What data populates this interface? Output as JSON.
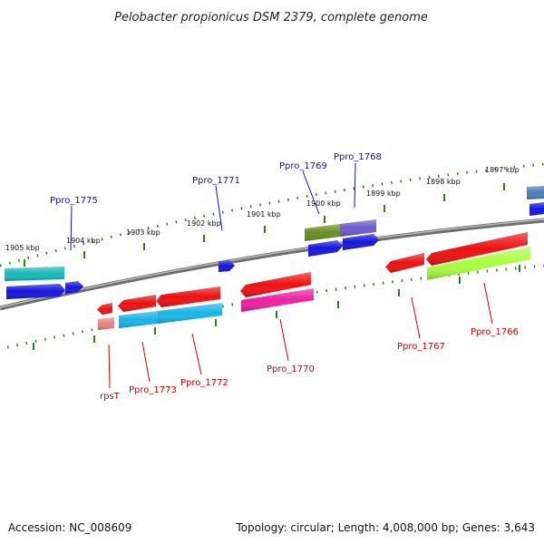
{
  "title": "Pelobacter propionicus DSM 2379, complete genome",
  "footer": {
    "accession": "Accession: NC_008609",
    "topology": "Topology: circular; Length: 4,008,000 bp; Genes: 3,643"
  },
  "colors": {
    "backbone": "#8a8a8a",
    "tick": "#2d7d1a",
    "label_upper": "#1010b0",
    "label_lower": "#cc0000"
  },
  "kbp_labels": [
    {
      "id": "1905",
      "text": "1905 kbp"
    },
    {
      "id": "1904",
      "text": "1904 kbp"
    },
    {
      "id": "1903",
      "text": "1903 kbp"
    },
    {
      "id": "1902",
      "text": "1902 kbp"
    },
    {
      "id": "1901",
      "text": "1901 kbp"
    },
    {
      "id": "1900",
      "text": "1900 kbp"
    },
    {
      "id": "1899",
      "text": "1899 kbp"
    },
    {
      "id": "1898",
      "text": "1898 kbp"
    },
    {
      "id": "1897",
      "text": "1897 kbp"
    }
  ],
  "gene_labels": [
    {
      "id": "ppro1775",
      "text": "Ppro_1775",
      "strand": "upper"
    },
    {
      "id": "ppro1771",
      "text": "Ppro_1771",
      "strand": "upper"
    },
    {
      "id": "ppro1769",
      "text": "Ppro_1769",
      "strand": "upper"
    },
    {
      "id": "ppro1768",
      "text": "Ppro_1768",
      "strand": "upper"
    },
    {
      "id": "rpst",
      "text": "rpsT",
      "strand": "lower"
    },
    {
      "id": "ppro1773",
      "text": "Ppro_1773",
      "strand": "lower"
    },
    {
      "id": "ppro1772",
      "text": "Ppro_1772",
      "strand": "lower"
    },
    {
      "id": "ppro1770",
      "text": "Ppro_1770",
      "strand": "lower"
    },
    {
      "id": "ppro1767",
      "text": "Ppro_1767",
      "strand": "lower"
    },
    {
      "id": "ppro1766",
      "text": "Ppro_1766",
      "strand": "lower"
    }
  ]
}
